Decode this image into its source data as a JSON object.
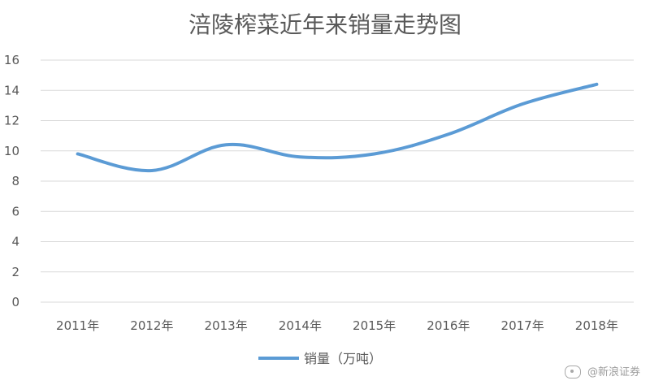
{
  "chart_data": {
    "type": "line",
    "title": "涪陵榨菜近年来销量走势图",
    "categories": [
      "2011年",
      "2012年",
      "2013年",
      "2014年",
      "2015年",
      "2016年",
      "2017年",
      "2018年"
    ],
    "series": [
      {
        "name": "销量（万吨）",
        "values": [
          9.8,
          8.7,
          10.4,
          9.6,
          9.8,
          11.1,
          13.1,
          14.4
        ],
        "color": "#5b9bd5"
      }
    ],
    "ylim": [
      0,
      16
    ],
    "yticks": [
      0,
      2,
      4,
      6,
      8,
      10,
      12,
      14,
      16
    ],
    "grid": true,
    "legend": "bottom"
  },
  "watermark": {
    "icon": "weibo-icon",
    "text": "@新浪证券"
  }
}
